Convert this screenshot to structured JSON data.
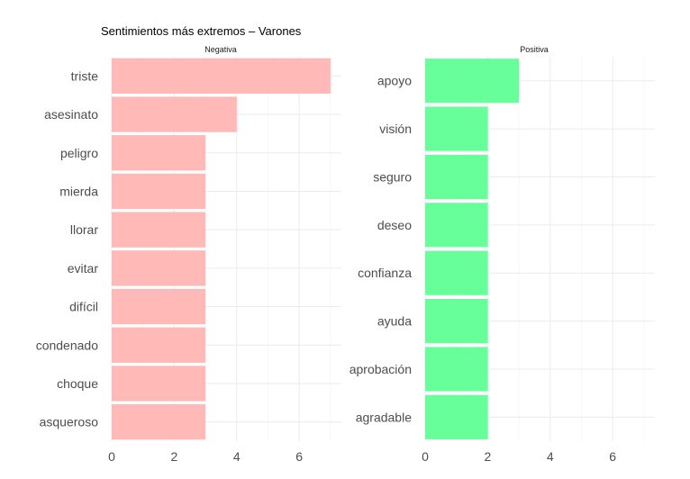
{
  "chart_data": {
    "type": "bar",
    "orientation": "horizontal",
    "title": "Sentimientos más extremos – Varones",
    "xlabel": "",
    "ylabel": "",
    "grid": true,
    "facets": [
      {
        "name": "Negativa",
        "color": "#FFB9B7",
        "categories": [
          "triste",
          "asesinato",
          "peligro",
          "mierda",
          "llorar",
          "evitar",
          "difícil",
          "condenado",
          "choque",
          "asqueroso"
        ],
        "values": [
          7,
          4,
          3,
          3,
          3,
          3,
          3,
          3,
          3,
          3
        ],
        "xlim": [
          0,
          7.35
        ],
        "xticks": [
          0,
          2,
          4,
          6
        ]
      },
      {
        "name": "Positiva",
        "color": "#66FF99",
        "categories": [
          "apoyo",
          "visión",
          "seguro",
          "deseo",
          "confianza",
          "ayuda",
          "aprobación",
          "agradable"
        ],
        "values": [
          3,
          2,
          2,
          2,
          2,
          2,
          2,
          2
        ],
        "xlim": [
          0,
          7.35
        ],
        "xticks": [
          0,
          2,
          4,
          6
        ]
      }
    ]
  }
}
